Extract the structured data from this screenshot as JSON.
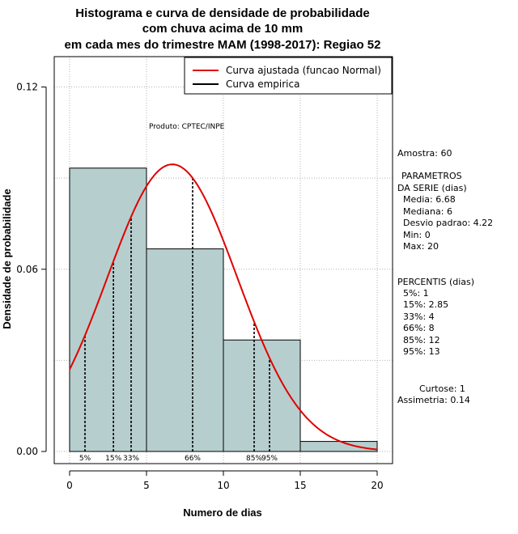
{
  "chart_data": {
    "type": "histogram",
    "title_lines": [
      "Histograma e curva de densidade de probabilidade",
      "com chuva acima de 10 mm",
      "em cada mes do trimestre MAM (1998-2017): Regiao 52"
    ],
    "xlabel": "Numero de dias",
    "ylabel": "Densidade de probabilidade",
    "xlim": [
      -1,
      21
    ],
    "ylim": [
      -0.004,
      0.13
    ],
    "x_ticks": [
      0,
      5,
      10,
      15,
      20
    ],
    "y_ticks": [
      0.0,
      0.06,
      0.12
    ],
    "y_tick_labels": [
      "0.00",
      "0.06",
      "0.12"
    ],
    "bins": [
      {
        "start": 0,
        "end": 5,
        "density": 0.0933
      },
      {
        "start": 5,
        "end": 10,
        "density": 0.0667
      },
      {
        "start": 10,
        "end": 15,
        "density": 0.0367
      },
      {
        "start": 15,
        "end": 20,
        "density": 0.0033
      }
    ],
    "bar_color": "#b7cece",
    "normal_fit": {
      "mean": 6.68,
      "sd": 4.22,
      "x_from": 0,
      "x_to": 20,
      "color": "#e00000"
    },
    "percentile_lines": [
      {
        "label": "5%",
        "x": 1
      },
      {
        "label": "15%",
        "x": 2.85
      },
      {
        "label": "33%",
        "x": 4
      },
      {
        "label": "66%",
        "x": 8
      },
      {
        "label": "85%",
        "x": 12
      },
      {
        "label": "95%",
        "x": 13
      }
    ],
    "legend": {
      "position": "top-right",
      "items": [
        {
          "label": "Curva ajustada (funcao Normal)",
          "color": "#e00000"
        },
        {
          "label": "Curva empirica",
          "color": "#000000"
        }
      ]
    },
    "annotation": "Produto: CPTEC/INPE",
    "side_stats": {
      "amostra": "Amostra: 60",
      "param_title_1": "PARAMETROS",
      "param_title_2": "DA SERIE (dias)",
      "media": "Media: 6.68",
      "mediana": "Mediana: 6",
      "desvio": "Desvio padrao: 4.22",
      "min": "Min: 0",
      "max": "Max: 20",
      "percentis_title": "PERCENTIS (dias)",
      "p5": "5%: 1",
      "p15": "15%: 2.85",
      "p33": "33%: 4",
      "p66": "66%: 8",
      "p85": "85%: 12",
      "p95": "95%: 13",
      "curtose": "Curtose: 1",
      "assimetria": "Assimetria: 0.14"
    }
  }
}
